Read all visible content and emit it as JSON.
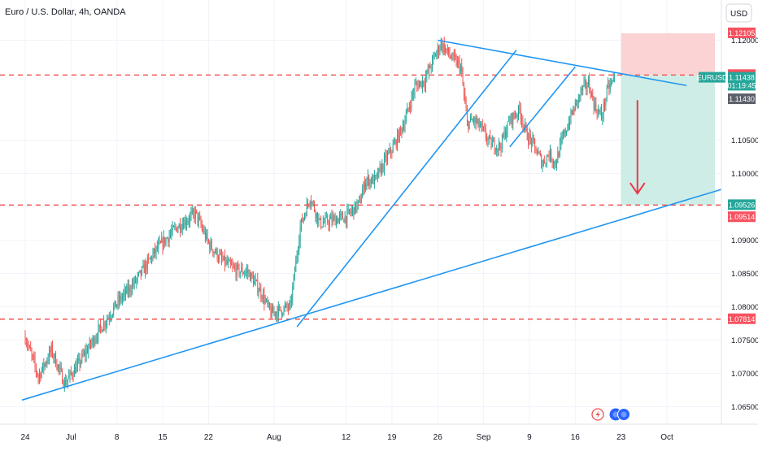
{
  "header": {
    "title": "Euro / U.S. Dollar, 4h, OANDA"
  },
  "price_scale": {
    "currency_button": "USD"
  },
  "colors": {
    "up": "#26a69a",
    "down": "#ef5350",
    "trendline": "#2196f3",
    "level": "#ef5350",
    "stop_zone": "#fccbcd",
    "target_zone": "#c9ebe3",
    "arrow": "#f23645"
  },
  "chart_data": {
    "type": "candlestick",
    "symbol": "EURUSD",
    "timeframe": "4h",
    "ylim": [
      1.0625,
      1.1225
    ],
    "y_ticks": [
      "1.12000",
      "1.10500",
      "1.10000",
      "1.09000",
      "1.08500",
      "1.08000",
      "1.07500",
      "1.07000",
      "1.06500"
    ],
    "x_ticks": [
      {
        "label": "24",
        "x": 0
      },
      {
        "label": "Jul",
        "x": 7
      },
      {
        "label": "8",
        "x": 14
      },
      {
        "label": "15",
        "x": 21
      },
      {
        "label": "22",
        "x": 28
      },
      {
        "label": "Aug",
        "x": 38
      },
      {
        "label": "12",
        "x": 49
      },
      {
        "label": "19",
        "x": 56
      },
      {
        "label": "26",
        "x": 63
      },
      {
        "label": "Sep",
        "x": 70
      },
      {
        "label": "9",
        "x": 77
      },
      {
        "label": "16",
        "x": 84
      },
      {
        "label": "23",
        "x": 91
      },
      {
        "label": "Oct",
        "x": 98
      }
    ],
    "x_range": [
      0,
      111
    ],
    "anchors": [
      [
        0,
        1.0755
      ],
      [
        2,
        1.0695
      ],
      [
        4,
        1.0735
      ],
      [
        6,
        1.0685
      ],
      [
        8,
        1.0712
      ],
      [
        11,
        1.076
      ],
      [
        14,
        1.0805
      ],
      [
        17,
        1.084
      ],
      [
        20,
        1.0885
      ],
      [
        23,
        1.0918
      ],
      [
        26,
        1.094
      ],
      [
        28,
        1.0895
      ],
      [
        30,
        1.087
      ],
      [
        32,
        1.0855
      ],
      [
        34,
        1.0852
      ],
      [
        36,
        1.0822
      ],
      [
        37.5,
        1.079
      ],
      [
        40.5,
        1.08
      ],
      [
        42,
        1.092
      ],
      [
        43.5,
        1.0965
      ],
      [
        45,
        1.0925
      ],
      [
        47,
        1.093
      ],
      [
        49,
        1.0935
      ],
      [
        51,
        1.0955
      ],
      [
        52,
        1.099
      ],
      [
        53.5,
        1.099
      ],
      [
        55,
        1.102
      ],
      [
        56.5,
        1.1045
      ],
      [
        58,
        1.108
      ],
      [
        59.5,
        1.113
      ],
      [
        61,
        1.114
      ],
      [
        62.5,
        1.1175
      ],
      [
        63.5,
        1.1195
      ],
      [
        65,
        1.1175
      ],
      [
        66.5,
        1.116
      ],
      [
        67.5,
        1.1075
      ],
      [
        68.5,
        1.108
      ],
      [
        69.5,
        1.107
      ],
      [
        71,
        1.1045
      ],
      [
        72.5,
        1.104
      ],
      [
        74,
        1.108
      ],
      [
        75.5,
        1.1095
      ],
      [
        76.5,
        1.106
      ],
      [
        77.5,
        1.1045
      ],
      [
        79,
        1.1015
      ],
      [
        80,
        1.103
      ],
      [
        81,
        1.1015
      ],
      [
        82,
        1.105
      ],
      [
        83.5,
        1.109
      ],
      [
        85,
        1.1125
      ],
      [
        86,
        1.1135
      ],
      [
        87,
        1.11
      ],
      [
        88,
        1.1085
      ],
      [
        89,
        1.1128
      ],
      [
        90,
        1.114
      ]
    ],
    "current_price": 1.11438,
    "countdown": "01:19:45",
    "levels": [
      {
        "name": "take-profit",
        "value": 1.09526,
        "color": "#ef5350",
        "style": "dashed"
      },
      {
        "name": "entry",
        "value": 1.11478,
        "color": "#ef5350",
        "style": "dashed"
      },
      {
        "name": "support",
        "value": 1.07814,
        "color": "#ef5350",
        "style": "dashed"
      }
    ],
    "price_tags": [
      {
        "label": "1.12105",
        "value": 1.12105,
        "color": "#f7525f"
      },
      {
        "label": "1.11478",
        "value": 1.11478,
        "color": "#f7525f"
      },
      {
        "label": "EURUSD",
        "value": 1.11438,
        "color": "#26a69a",
        "side": "left"
      },
      {
        "label": "1.11438",
        "value": 1.11438,
        "color": "#26a69a"
      },
      {
        "label": "01:19:45",
        "value": 1.11318,
        "color": "#26a69a"
      },
      {
        "label": "1.11430",
        "value": 1.11115,
        "color": "#5d606b"
      },
      {
        "label": "1.09526",
        "value": 1.09526,
        "color": "#26a69a"
      },
      {
        "label": "1.09514",
        "value": 1.09345,
        "color": "#f7525f"
      },
      {
        "label": "1.07814",
        "value": 1.07814,
        "color": "#f7525f"
      }
    ],
    "position": {
      "type": "short",
      "x_start": 91,
      "x_end": 110,
      "stop": 1.12105,
      "entry": 1.11478,
      "target": 1.09526
    },
    "trendlines": [
      {
        "name": "long-term-support-trendline",
        "from": [
          -0.5,
          1.066
        ],
        "to": [
          111,
          1.099
        ]
      },
      {
        "name": "steep-uptrend-trendline",
        "from": [
          41.5,
          1.077
        ],
        "to": [
          75,
          1.1185
        ]
      },
      {
        "name": "resistance-trendline",
        "from": [
          63,
          1.12
        ],
        "to": [
          101,
          1.1132
        ]
      },
      {
        "name": "channel-trendline",
        "from": [
          74,
          1.104
        ],
        "to": [
          84,
          1.116
        ]
      }
    ],
    "arrow": {
      "x": 93.5,
      "from": 1.111,
      "to": 1.097
    },
    "grid": true,
    "legend": "none"
  }
}
